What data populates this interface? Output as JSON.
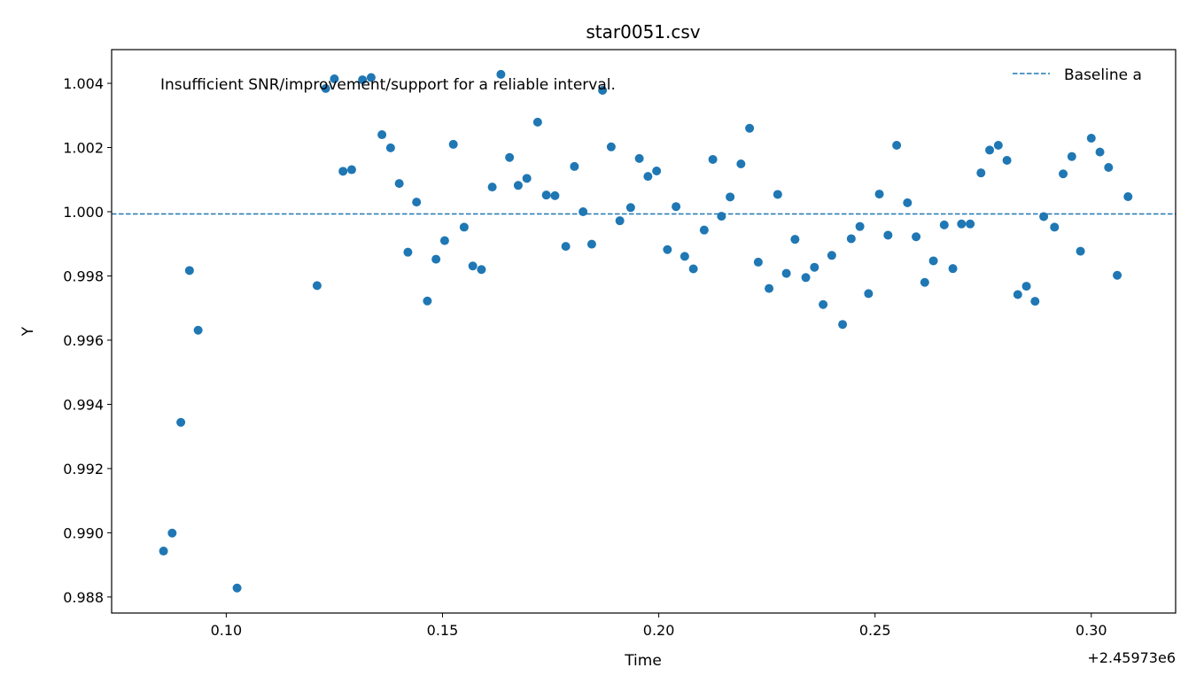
{
  "chart_data": {
    "type": "scatter",
    "title": "star0051.csv",
    "xlabel": "Time",
    "ylabel": "Y",
    "x_offset_label": "+2.45973e6",
    "annotation": "Insufficient SNR/improvement/support for a reliable interval.",
    "xlim": [
      0.0735,
      0.3195
    ],
    "ylim": [
      0.9875,
      1.00505
    ],
    "x_ticks": [
      0.1,
      0.15,
      0.2,
      0.25,
      0.3
    ],
    "x_tick_labels": [
      "0.10",
      "0.15",
      "0.20",
      "0.25",
      "0.30"
    ],
    "y_ticks": [
      0.988,
      0.99,
      0.992,
      0.994,
      0.996,
      0.998,
      1.0,
      1.002,
      1.004
    ],
    "y_tick_labels": [
      "0.988",
      "0.990",
      "0.992",
      "0.994",
      "0.996",
      "0.998",
      "1.000",
      "1.002",
      "1.004"
    ],
    "grid": false,
    "legend_position": "top-right",
    "baseline": {
      "name": "Baseline a",
      "value": 0.99993,
      "style": "dashed",
      "color": "#1f77b4"
    },
    "point_color": "#1f77b4",
    "series": [
      {
        "x": [
          0.0855,
          0.0875,
          0.0895,
          0.0915,
          0.0935,
          0.1025,
          0.121,
          0.123,
          0.125,
          0.127,
          0.129,
          0.1315,
          0.1335,
          0.136,
          0.138,
          0.14,
          0.142,
          0.144,
          0.1465,
          0.1485,
          0.1505,
          0.1525,
          0.155,
          0.157,
          0.159,
          0.1615,
          0.1635,
          0.1655,
          0.1675,
          0.1695,
          0.172,
          0.174,
          0.176,
          0.1785,
          0.1805,
          0.1825,
          0.1845,
          0.187,
          0.189,
          0.191,
          0.1935,
          0.1955,
          0.1975,
          0.1995,
          0.202,
          0.204,
          0.206,
          0.208,
          0.2105,
          0.2125,
          0.2145,
          0.2165,
          0.219,
          0.221,
          0.223,
          0.2255,
          0.2275,
          0.2295,
          0.2315,
          0.234,
          0.236,
          0.238,
          0.24,
          0.2425,
          0.2445,
          0.2465,
          0.2485,
          0.251,
          0.253,
          0.255,
          0.2575,
          0.2595,
          0.2615,
          0.2635,
          0.266,
          0.268,
          0.27,
          0.272,
          0.2745,
          0.2765,
          0.2785,
          0.2805,
          0.283,
          0.285,
          0.287,
          0.289,
          0.2915,
          0.2935,
          0.2955,
          0.2975,
          0.3,
          0.302,
          0.304,
          0.306,
          0.3085
        ],
        "y": [
          0.98943,
          0.98999,
          0.99344,
          0.99817,
          0.99631,
          0.98828,
          0.9977,
          1.00384,
          1.00414,
          1.00126,
          1.00131,
          1.00411,
          1.00418,
          1.0024,
          1.00199,
          1.00088,
          0.99874,
          1.0003,
          0.99722,
          0.99852,
          0.9991,
          1.0021,
          0.99952,
          0.99831,
          0.9982,
          1.00077,
          1.00428,
          1.00169,
          1.00082,
          1.00104,
          1.00279,
          1.00052,
          1.0005,
          0.99892,
          1.00141,
          1.0,
          0.99899,
          1.00378,
          1.00202,
          0.99972,
          1.00013,
          1.00166,
          1.0011,
          1.00127,
          0.99882,
          1.00016,
          0.99861,
          0.99822,
          0.99943,
          1.00163,
          0.99986,
          1.00046,
          1.00149,
          1.0026,
          0.99843,
          0.99761,
          1.00054,
          0.99808,
          0.99914,
          0.99795,
          0.99827,
          0.99711,
          0.99864,
          0.99649,
          0.99916,
          0.99954,
          0.99745,
          1.00055,
          0.99927,
          1.00207,
          1.00028,
          0.99922,
          0.9978,
          0.99847,
          0.99959,
          0.99823,
          0.99962,
          0.99962,
          1.00121,
          1.00192,
          1.00207,
          1.0016,
          0.99742,
          0.99768,
          0.99721,
          0.99985,
          0.99952,
          1.00118,
          1.00172,
          0.99877,
          1.00229,
          1.00186,
          1.00138,
          0.99802,
          1.00047
        ]
      }
    ]
  }
}
